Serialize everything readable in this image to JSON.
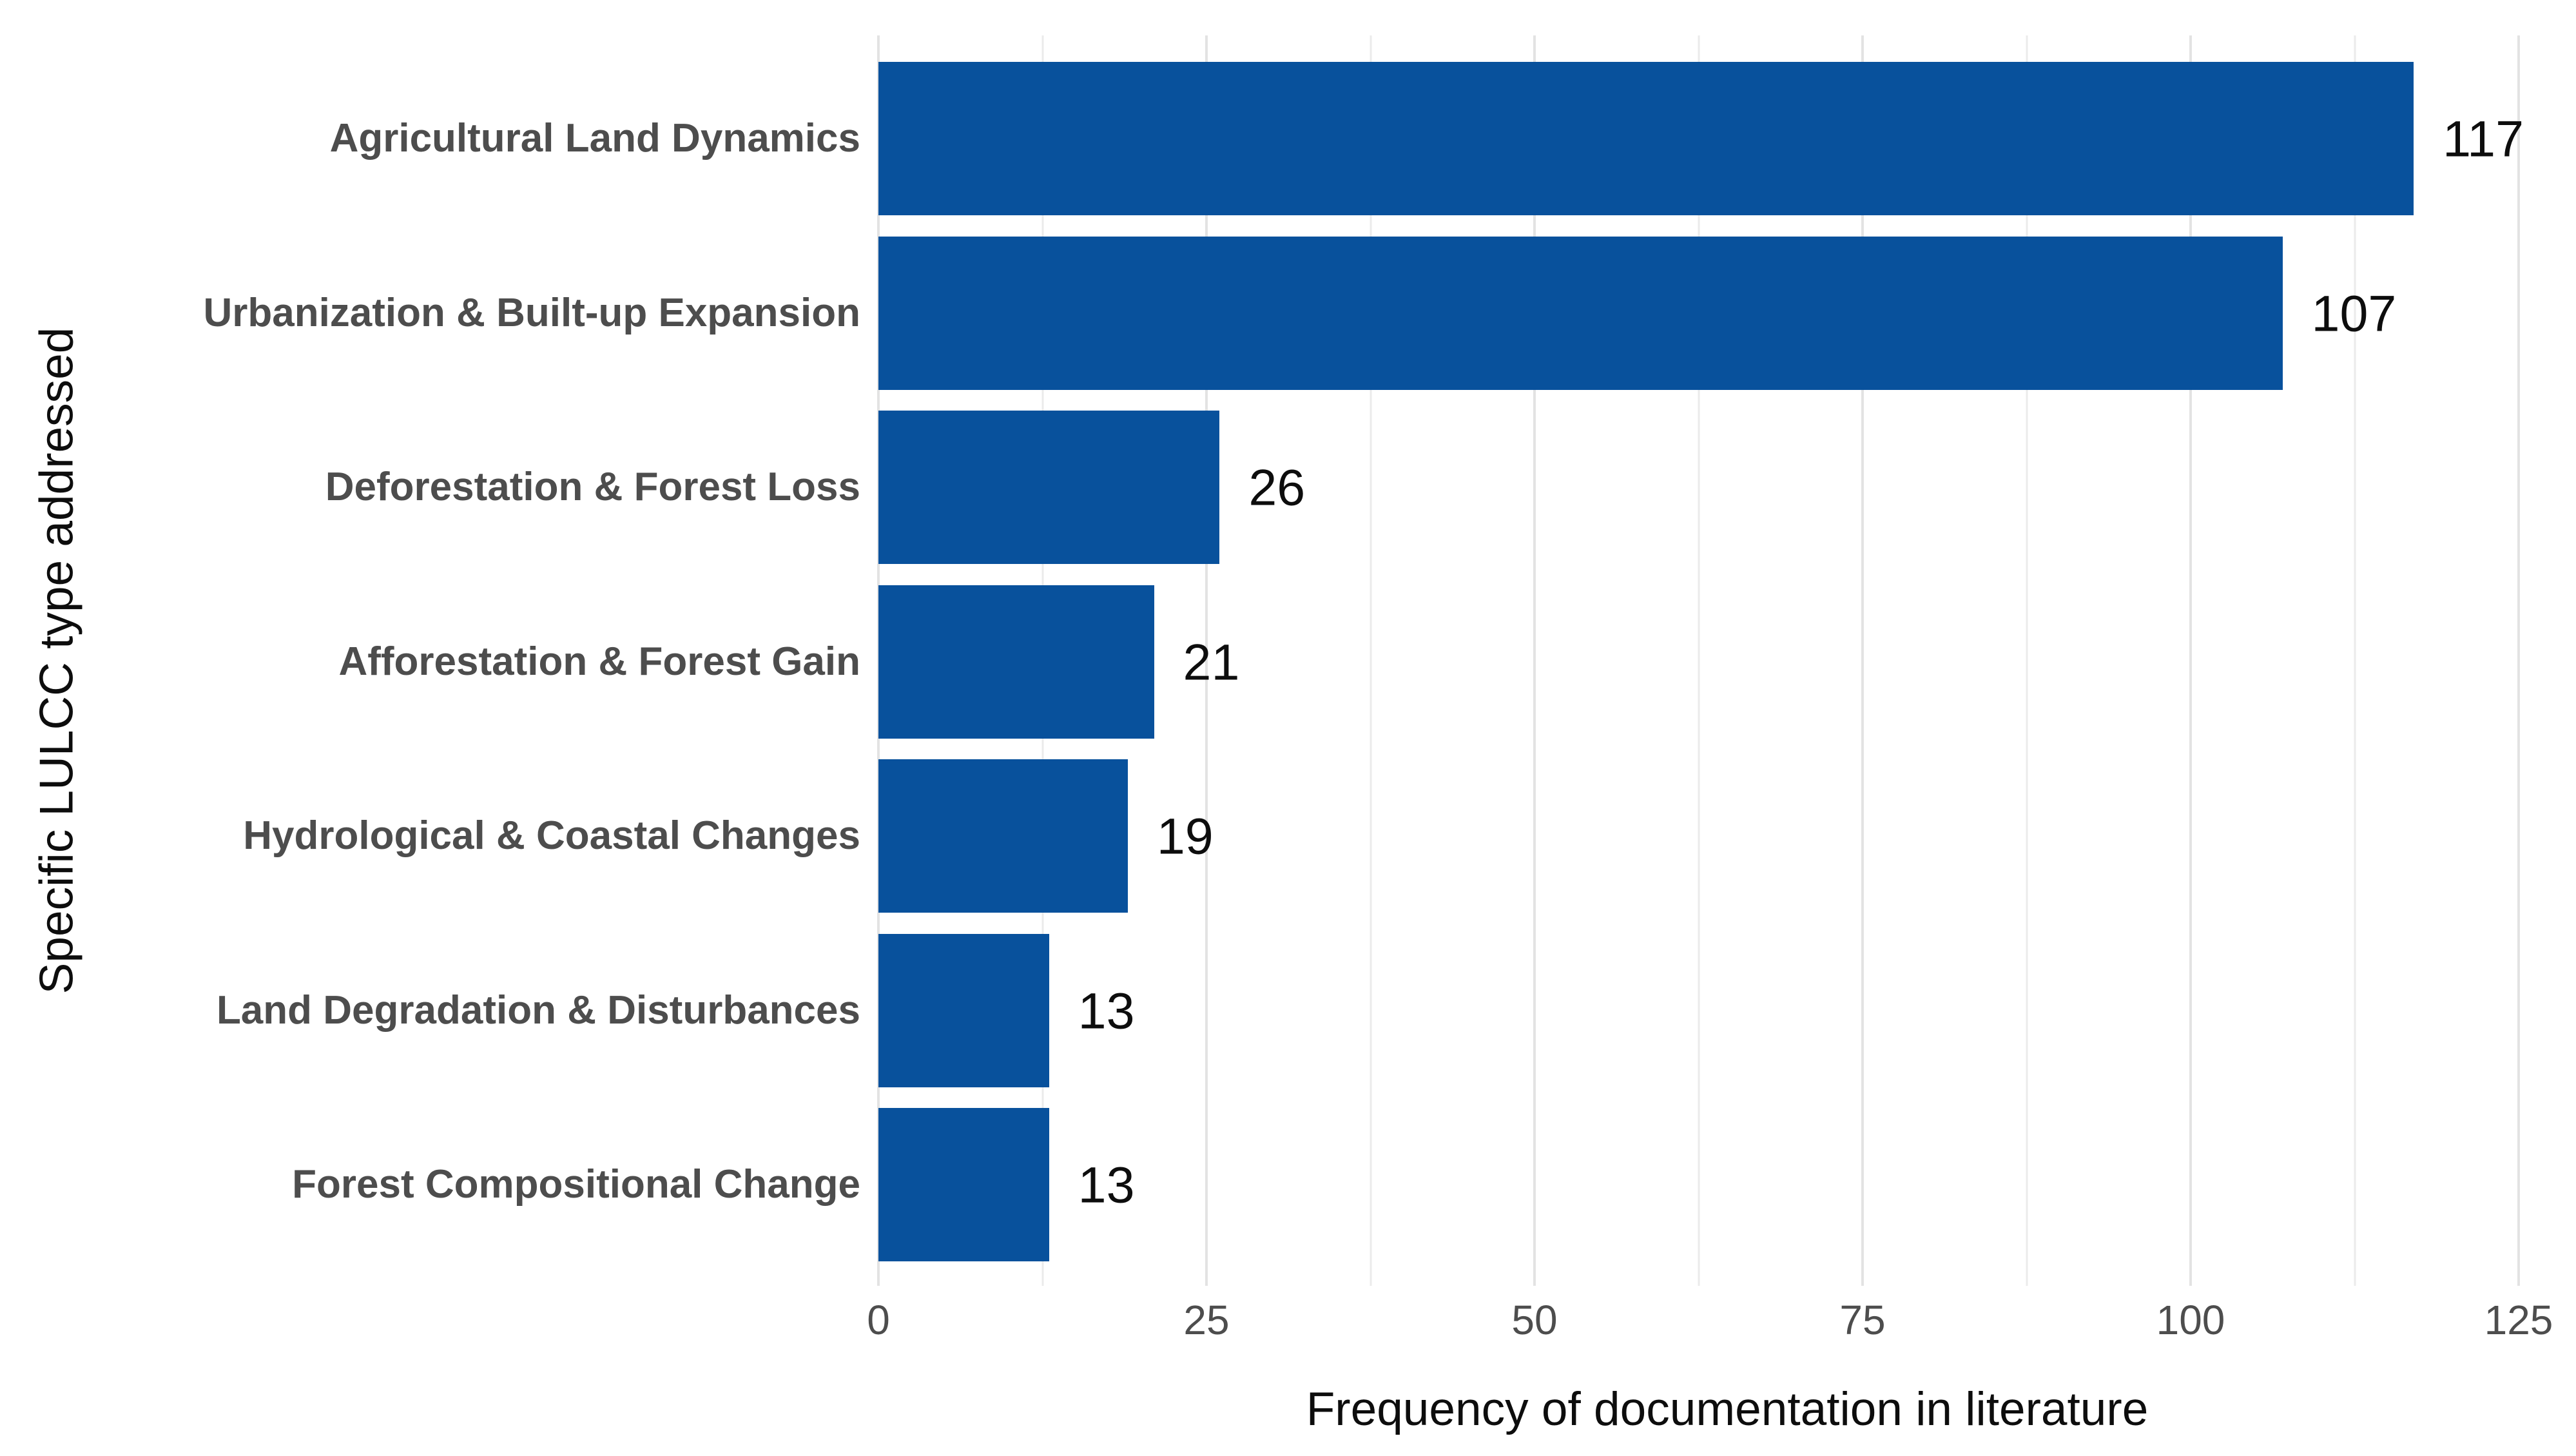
{
  "chart_data": {
    "type": "bar",
    "orientation": "horizontal",
    "categories": [
      "Agricultural Land Dynamics",
      "Urbanization & Built-up Expansion",
      "Deforestation & Forest Loss",
      "Afforestation & Forest Gain",
      "Hydrological & Coastal Changes",
      "Land Degradation & Disturbances",
      "Forest Compositional Change"
    ],
    "values": [
      117,
      107,
      26,
      21,
      19,
      13,
      13
    ],
    "value_labels": [
      "117",
      "107",
      "26",
      "21",
      "19",
      "13",
      "13"
    ],
    "xlabel": "Frequency of documentation in literature",
    "ylabel": "Specific LULCC type addressed",
    "x_major_ticks": [
      0,
      25,
      50,
      75,
      100,
      125
    ],
    "x_minor_ticks": [
      12.5,
      37.5,
      62.5,
      87.5,
      112.5
    ],
    "xlim": [
      0,
      129.4
    ],
    "grid": "vertical major and minor, light gray, no axis lines, no tick marks",
    "legend": "none",
    "background": "#ffffff"
  },
  "colors": {
    "bar_fill": "#08519c",
    "category_label": "#4d4d4d",
    "tick_label": "#4d4d4d",
    "value_label": "#0d0d0d",
    "axis_title": "#0d0d0d",
    "grid_major": "#e3e3e3",
    "grid_minor": "#ebebeb"
  }
}
